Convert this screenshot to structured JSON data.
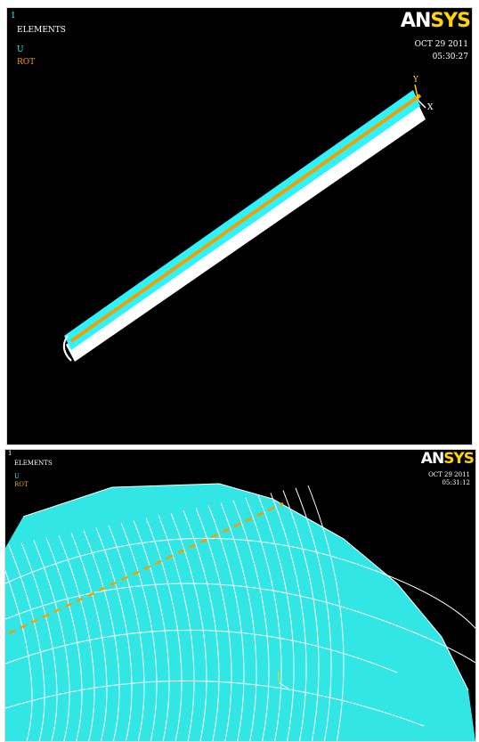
{
  "top_view": {
    "window_number": "1",
    "title": "ELEMENTS",
    "legend": [
      {
        "label": "U",
        "color": "#2ff2ff"
      },
      {
        "label": "ROT",
        "color": "#f0a000"
      }
    ],
    "logo_an": "AN",
    "logo_sys": "SYS",
    "date": "OCT 29 2011",
    "time": "05:30:27",
    "triad": {
      "y_label": "Y",
      "x_label": "X"
    }
  },
  "bottom_view": {
    "window_number": "1",
    "title": "ELEMENTS",
    "legend": [
      {
        "label": "U",
        "color": "#2ff2ff"
      },
      {
        "label": "ROT",
        "color": "#f0a000"
      }
    ],
    "logo_an": "AN",
    "logo_sys": "SYS",
    "date": "OCT 29 2011",
    "time": "05:31:12"
  },
  "colors": {
    "background": "#000000",
    "mesh_fill": "#33e6e6",
    "mesh_lines": "#ffffff",
    "rot_symbol": "#f0a000",
    "logo_accent": "#ffd400"
  }
}
